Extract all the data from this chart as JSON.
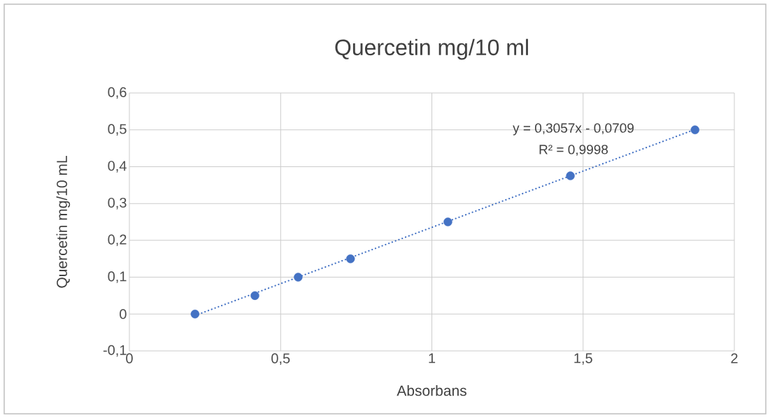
{
  "chart_data": {
    "type": "scatter",
    "title": "Quercetin mg/10 ml",
    "xlabel": "Absorbans",
    "ylabel": "Quercetin mg/10 mL",
    "series": [
      {
        "color": "#4472c4",
        "marker": "circle",
        "x": [
          0.217,
          0.415,
          0.558,
          0.731,
          1.053,
          1.458,
          1.87
        ],
        "values": [
          0,
          0.05,
          0.1,
          0.15,
          0.25,
          0.375,
          0.5
        ]
      },
      {
        "type": "line",
        "color": "#4472c4",
        "line_style": "dotted",
        "marker": "none",
        "x": [
          0.217,
          1.87
        ],
        "values": [
          -0.004,
          0.501
        ]
      }
    ],
    "annotations": [
      "y = 0,3057x - 0,0709",
      "R² = 0,9998"
    ],
    "xlim": [
      0,
      2
    ],
    "ylim": [
      -0.1,
      0.6
    ],
    "xticks": [
      0,
      {
        "value": 0.5,
        "label": "0,5"
      },
      1,
      {
        "value": 1.5,
        "label": "1,5"
      },
      2
    ],
    "yticks": [
      {
        "value": -0.1,
        "label": "-0,1"
      },
      0,
      {
        "value": 0.1,
        "label": "0,1"
      },
      {
        "value": 0.2,
        "label": "0,2"
      },
      {
        "value": 0.3,
        "label": "0,3"
      },
      {
        "value": 0.4,
        "label": "0,4"
      },
      {
        "value": 0.5,
        "label": "0,5"
      },
      {
        "value": 0.6,
        "label": "0,6"
      }
    ],
    "grid": true
  }
}
